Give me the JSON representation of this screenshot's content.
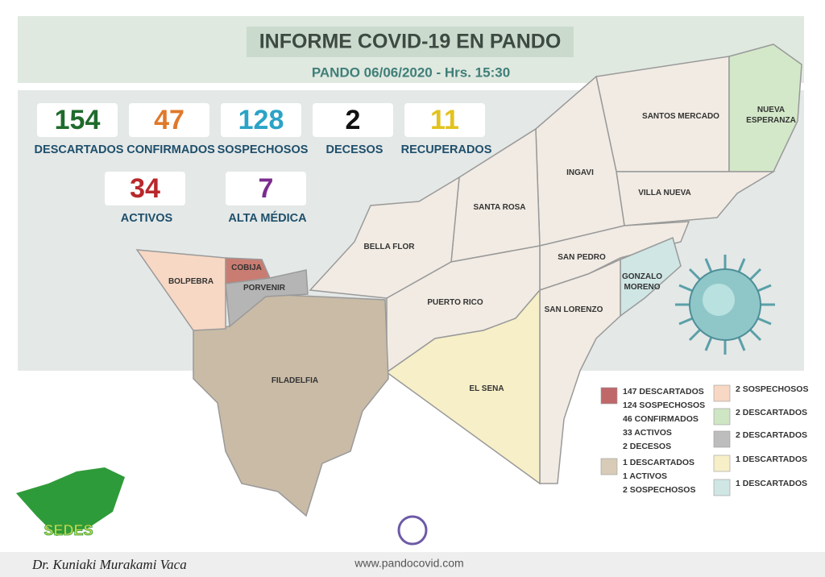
{
  "header": {
    "title": "INFORME COVID-19 EN PANDO",
    "subtitle": "PANDO 06/06/2020 - Hrs. 15:30"
  },
  "stats": [
    {
      "value": 154,
      "label": "DESCARTADOS",
      "color": "#1f6b2c"
    },
    {
      "value": 47,
      "label": "CONFIRMADOS",
      "color": "#e0782a"
    },
    {
      "value": 128,
      "label": "SOSPECHOSOS",
      "color": "#2ba3c7"
    },
    {
      "value": 2,
      "label": "DECESOS",
      "color": "#111111"
    },
    {
      "value": 11,
      "label": "RECUPERADOS",
      "color": "#e2c21e"
    },
    {
      "value": 34,
      "label": "ACTIVOS",
      "color": "#b8282b"
    },
    {
      "value": 7,
      "label": "ALTA MÉDICA",
      "color": "#7b2d8e"
    }
  ],
  "regions": [
    "SANTOS MERCADO",
    "NUEVA ESPERANZA",
    "VILLA NUEVA",
    "INGAVI",
    "SANTA ROSA",
    "BELLA FLOR",
    "SAN PEDRO",
    "GONZALO MORENO",
    "SAN LORENZO",
    "PUERTO RICO",
    "EL SENA",
    "FILADELFIA",
    "BOLPEBRA",
    "COBIJA",
    "PORVENIR"
  ],
  "legend": [
    {
      "color": "#c0676a",
      "lines": [
        "147 DESCARTADOS",
        "124 SOSPECHOSOS",
        "46 CONFIRMADOS",
        "33 ACTIVOS",
        "2 DECESOS"
      ]
    },
    {
      "color": "#d8ccb8",
      "lines": [
        "1 DESCARTADOS",
        "1 ACTIVOS",
        "2 SOSPECHOSOS"
      ]
    },
    {
      "color": "#f7d8c4",
      "lines": [
        "2 SOSPECHOSOS"
      ]
    },
    {
      "color": "#cfe6c4",
      "lines": [
        "2 DESCARTADOS"
      ]
    },
    {
      "color": "#bdbdbd",
      "lines": [
        "2 DESCARTADOS"
      ]
    },
    {
      "color": "#f6efc8",
      "lines": [
        "1 DESCARTADOS"
      ]
    },
    {
      "color": "#cfe6e4",
      "lines": [
        "1 DESCARTADOS"
      ]
    }
  ],
  "footer": {
    "author": "Dr. Kuniaki Murakami Vaca",
    "url": "www.pandocovid.com",
    "logo": "SEDES"
  }
}
